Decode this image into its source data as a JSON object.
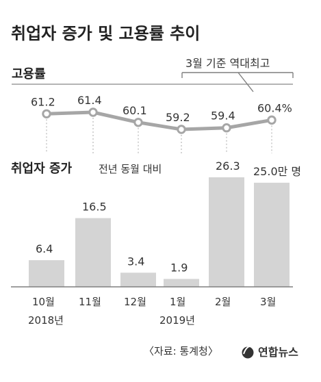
{
  "title": "취업자 증가 및 고용률 추이",
  "employment_rate_section": {
    "title": "고용률",
    "callout": "3월 기준 역대최고"
  },
  "employment_growth_section": {
    "title": "취업자 증가",
    "subtitle": "전년 동월 대비",
    "unit": "만 명"
  },
  "categories": [
    "10월",
    "11월",
    "12월",
    "1월",
    "2월",
    "3월"
  ],
  "years": [
    "2018년",
    "2019년"
  ],
  "source": "〈자료: 통계청〉",
  "logo": "연합뉴스",
  "colors": {
    "bar": "#d4d4d4",
    "line": "#a6a6a6",
    "guide": "#b8b8b8",
    "marker_fill": "#ffffff",
    "text": "#222222"
  },
  "chart_data": [
    {
      "type": "line",
      "title": "고용률",
      "categories": [
        "10월",
        "11월",
        "12월",
        "1월",
        "2월",
        "3월"
      ],
      "values": [
        61.2,
        61.4,
        60.1,
        59.2,
        59.4,
        60.4
      ],
      "data_labels": [
        "61.2",
        "61.4",
        "60.1",
        "59.2",
        "59.4",
        "60.4%"
      ],
      "annotation": "3월 기준 역대최고",
      "grid": false
    },
    {
      "type": "bar",
      "title": "취업자 증가",
      "subtitle": "전년 동월 대비",
      "categories": [
        "10월",
        "11월",
        "12월",
        "1월",
        "2월",
        "3월"
      ],
      "values": [
        6.4,
        16.5,
        3.4,
        1.9,
        26.3,
        25.0
      ],
      "data_labels": [
        "6.4",
        "16.5",
        "3.4",
        "1.9",
        "26.3",
        "25.0만 명"
      ],
      "unit": "만 명",
      "ylim": [
        0,
        26.3
      ],
      "grid": false
    }
  ]
}
